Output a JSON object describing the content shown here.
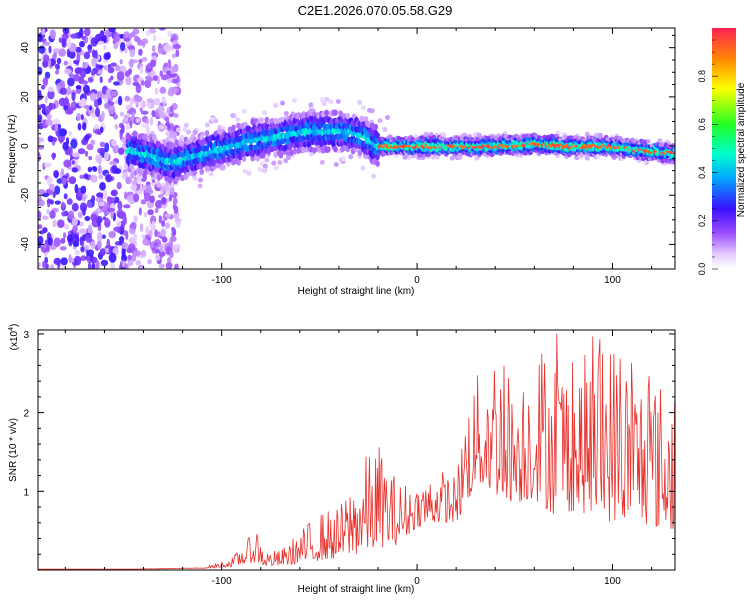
{
  "title": "C2E1.2026.070.05.58.G29",
  "chart_data": [
    {
      "type": "heatmap",
      "name": "spectrogram",
      "xlabel": "Height of straight line (km)",
      "ylabel": "Frequency (Hz)",
      "xlim": [
        -194,
        132
      ],
      "ylim": [
        -50,
        48
      ],
      "xticks": [
        -100,
        0,
        100
      ],
      "yticks": [
        -40,
        -20,
        0,
        20,
        40
      ],
      "colorbar": {
        "label": "Normalized spectral amplitude",
        "range": [
          0,
          1
        ],
        "ticks": [
          0.0,
          0.2,
          0.4,
          0.6,
          0.8
        ]
      },
      "ridge": {
        "x": [
          -145,
          -135,
          -125,
          -115,
          -100,
          -85,
          -70,
          -55,
          -40,
          -30,
          -20,
          0,
          20,
          40,
          60,
          80,
          100,
          120,
          132
        ],
        "frequency": [
          -2,
          -4,
          -7,
          -4,
          -1,
          2,
          4,
          6,
          6,
          5,
          0,
          0,
          0,
          0,
          1,
          0,
          0,
          -2,
          -3
        ]
      },
      "noise_region_x": [
        -194,
        -130
      ]
    },
    {
      "type": "line",
      "name": "snr",
      "xlabel": "Height of straight line (km)",
      "ylabel": "SNR (10 * v/v)",
      "multiplier": "(x10",
      "multiplier_exp": "4",
      "multiplier_close": ")",
      "xlim": [
        -194,
        132
      ],
      "ylim": [
        0,
        3.05
      ],
      "xticks": [
        -100,
        0,
        100
      ],
      "yticks": [
        1,
        2,
        3
      ],
      "series": [
        {
          "name": "SNR",
          "color": "#e8302c",
          "x": [
            -194,
            -150,
            -110,
            -95,
            -88,
            -82,
            -78,
            -70,
            -60,
            -50,
            -40,
            -30,
            -20,
            -10,
            0,
            10,
            20,
            25,
            30,
            40,
            50,
            60,
            70,
            80,
            90,
            100,
            110,
            120,
            132
          ],
          "low": [
            0.01,
            0.01,
            0.02,
            0.04,
            0.08,
            0.1,
            0.05,
            0.05,
            0.08,
            0.12,
            0.15,
            0.2,
            0.28,
            0.32,
            0.55,
            0.6,
            0.6,
            0.8,
            1.1,
            0.95,
            0.85,
            0.9,
            0.7,
            0.75,
            0.7,
            0.6,
            0.65,
            0.55,
            0.5
          ],
          "high": [
            0.01,
            0.01,
            0.03,
            0.15,
            0.35,
            0.55,
            0.25,
            0.25,
            0.5,
            0.75,
            0.8,
            1.35,
            1.65,
            1.15,
            1.1,
            1.3,
            1.2,
            2.2,
            2.45,
            2.95,
            2.4,
            2.9,
            2.95,
            2.6,
            2.85,
            3.0,
            2.6,
            2.5,
            2.3
          ]
        }
      ]
    }
  ]
}
